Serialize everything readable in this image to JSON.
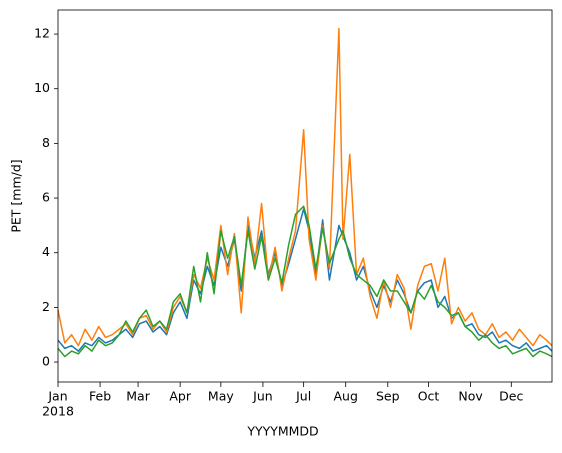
{
  "chart_data": {
    "type": "line",
    "xlabel": "YYYYMMDD",
    "ylabel": "PET [mm/d]",
    "year_label": "2018",
    "x": [
      0,
      5,
      10,
      15,
      20,
      25,
      30,
      35,
      40,
      45,
      50,
      55,
      60,
      65,
      70,
      75,
      80,
      85,
      90,
      95,
      100,
      105,
      110,
      115,
      120,
      125,
      130,
      135,
      140,
      145,
      150,
      155,
      160,
      165,
      170,
      175,
      181,
      185,
      190,
      195,
      200,
      207,
      210,
      215,
      220,
      225,
      230,
      235,
      240,
      245,
      250,
      255,
      260,
      265,
      270,
      275,
      280,
      285,
      290,
      295,
      300,
      305,
      310,
      315,
      320,
      325,
      330,
      335,
      340,
      345,
      350,
      355,
      360,
      364
    ],
    "series": [
      {
        "color": "#1f77b4",
        "values": [
          0.8,
          0.5,
          0.6,
          0.4,
          0.7,
          0.6,
          0.9,
          0.7,
          0.8,
          1.0,
          1.2,
          0.9,
          1.4,
          1.5,
          1.1,
          1.3,
          1.0,
          1.8,
          2.2,
          1.6,
          3.0,
          2.5,
          3.5,
          2.8,
          4.2,
          3.5,
          4.5,
          2.6,
          5.0,
          3.8,
          4.8,
          3.2,
          4.0,
          2.8,
          3.6,
          4.5,
          5.6,
          4.8,
          3.2,
          5.2,
          3.0,
          5.0,
          4.6,
          4.0,
          3.0,
          3.5,
          2.6,
          2.0,
          2.8,
          2.2,
          3.0,
          2.5,
          1.8,
          2.6,
          2.9,
          3.0,
          2.0,
          2.4,
          1.6,
          1.8,
          1.3,
          1.4,
          1.0,
          0.9,
          1.1,
          0.7,
          0.8,
          0.6,
          0.5,
          0.7,
          0.4,
          0.5,
          0.6,
          0.4
        ]
      },
      {
        "color": "#ff7f0e",
        "values": [
          1.9,
          0.7,
          1.0,
          0.6,
          1.2,
          0.8,
          1.3,
          0.9,
          1.0,
          1.2,
          1.4,
          1.0,
          1.6,
          1.7,
          1.2,
          1.5,
          1.1,
          2.0,
          2.4,
          1.8,
          3.2,
          2.7,
          3.8,
          3.0,
          5.0,
          3.2,
          4.7,
          1.8,
          5.3,
          3.6,
          5.8,
          3.0,
          4.2,
          2.6,
          3.8,
          4.8,
          8.5,
          4.5,
          3.0,
          5.0,
          3.4,
          12.2,
          4.5,
          7.6,
          3.2,
          3.8,
          2.4,
          1.6,
          3.0,
          2.0,
          3.2,
          2.7,
          1.2,
          2.8,
          3.5,
          3.6,
          2.6,
          3.8,
          1.4,
          2.0,
          1.5,
          1.8,
          1.2,
          1.0,
          1.4,
          0.9,
          1.1,
          0.8,
          1.2,
          0.9,
          0.6,
          1.0,
          0.8,
          0.6
        ]
      },
      {
        "color": "#2ca02c",
        "values": [
          0.5,
          0.2,
          0.4,
          0.3,
          0.6,
          0.4,
          0.8,
          0.6,
          0.7,
          1.0,
          1.5,
          1.1,
          1.6,
          1.9,
          1.3,
          1.5,
          1.2,
          2.2,
          2.5,
          1.8,
          3.5,
          2.2,
          4.0,
          2.5,
          4.8,
          3.8,
          4.6,
          2.8,
          4.8,
          3.4,
          4.6,
          3.0,
          3.8,
          2.9,
          4.3,
          5.4,
          5.7,
          5.0,
          3.4,
          4.9,
          3.6,
          4.5,
          4.8,
          3.8,
          3.2,
          3.0,
          2.8,
          2.4,
          3.0,
          2.6,
          2.6,
          2.2,
          1.8,
          2.6,
          2.3,
          2.8,
          2.2,
          2.0,
          1.7,
          1.8,
          1.3,
          1.1,
          0.8,
          1.0,
          0.7,
          0.5,
          0.6,
          0.3,
          0.4,
          0.5,
          0.2,
          0.4,
          0.3,
          0.2
        ]
      }
    ],
    "xlim": [
      0,
      364
    ],
    "xticks": [
      {
        "value": 0,
        "label": "Jan"
      },
      {
        "value": 31,
        "label": "Feb"
      },
      {
        "value": 59,
        "label": "Mar"
      },
      {
        "value": 90,
        "label": "Apr"
      },
      {
        "value": 120,
        "label": "May"
      },
      {
        "value": 151,
        "label": "Jun"
      },
      {
        "value": 181,
        "label": "Jul"
      },
      {
        "value": 212,
        "label": "Aug"
      },
      {
        "value": 243,
        "label": "Sep"
      },
      {
        "value": 273,
        "label": "Oct"
      },
      {
        "value": 304,
        "label": "Nov"
      },
      {
        "value": 334,
        "label": "Dec"
      }
    ],
    "ylim": [
      -0.73,
      12.88
    ],
    "yticks": [
      0,
      2,
      4,
      6,
      8,
      10,
      12
    ],
    "grid": false
  }
}
